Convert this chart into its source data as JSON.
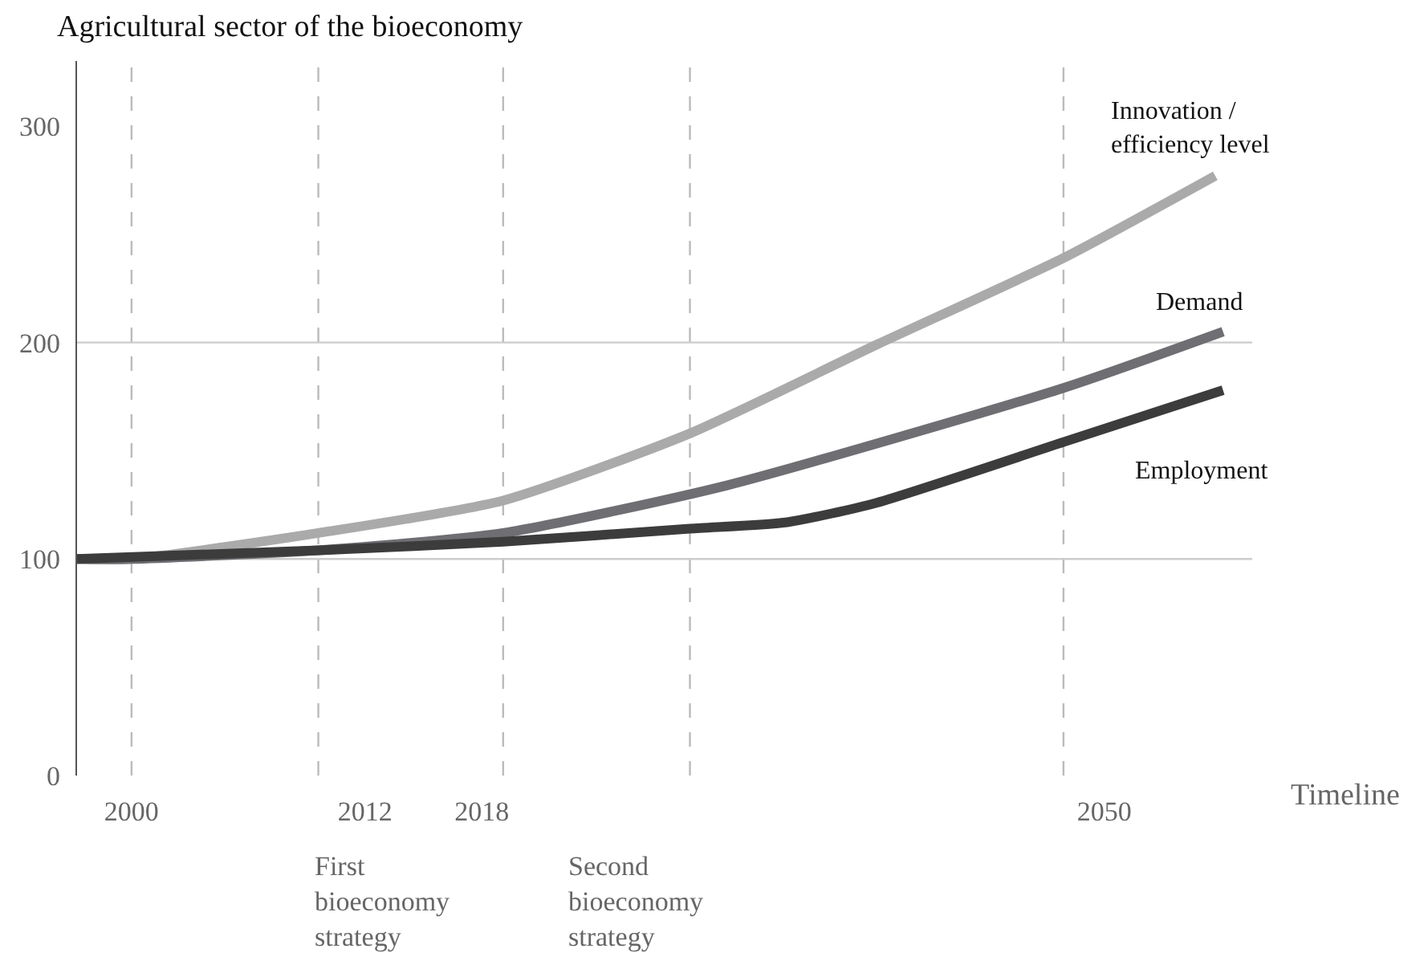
{
  "chart_data": {
    "type": "line",
    "title": "Agricultural sector of the bioeconomy",
    "xlabel": "Timeline",
    "xlim": [
      1997.2,
      2057.6
    ],
    "xticks": [
      2000,
      2012,
      2018,
      2050
    ],
    "ylim": [
      0,
      330
    ],
    "yticks": [
      0,
      100,
      200,
      300
    ],
    "grid": false,
    "legend": false,
    "marker": "none",
    "line_style": "solid",
    "series": [
      {
        "name": "Innovation /\nefficiency level",
        "color": "#aaaaaa",
        "x": [
          1997.2,
          2000,
          2009.6,
          2019.1,
          2028.7,
          2038.3,
          2047.9,
          2055.7
        ],
        "values": [
          100,
          100,
          112,
          127,
          158,
          199,
          239,
          277
        ]
      },
      {
        "name": "Demand",
        "color": "#6e6e73",
        "x": [
          1997.2,
          2000,
          2009.6,
          2019.1,
          2030.6,
          2047.9,
          2056.1
        ],
        "values": [
          100,
          100,
          104,
          112,
          134,
          179,
          205
        ]
      },
      {
        "name": "Employment",
        "color": "#3c3c3c",
        "x": [
          1997.2,
          2009.6,
          2019.1,
          2028.7,
          2033.7,
          2038.3,
          2047.9,
          2056.1
        ],
        "values": [
          100,
          104,
          108,
          114,
          117,
          126,
          154,
          178
        ]
      }
    ],
    "ref_lines": [
      {
        "axis": "x",
        "value": 2000,
        "color": "#bbbbbb",
        "line_style": "dashed"
      },
      {
        "axis": "x",
        "value": 2009.6,
        "color": "#bbbbbb",
        "line_style": "dashed"
      },
      {
        "axis": "x",
        "value": 2019.1,
        "color": "#bbbbbb",
        "line_style": "dashed"
      },
      {
        "axis": "x",
        "value": 2028.7,
        "color": "#bbbbbb",
        "line_style": "dashed"
      },
      {
        "axis": "x",
        "value": 2047.9,
        "color": "#bbbbbb",
        "line_style": "dashed"
      },
      {
        "axis": "y",
        "value": 100,
        "color": "#cccccc",
        "line_style": "solid"
      },
      {
        "axis": "y",
        "value": 200,
        "color": "#cccccc",
        "line_style": "solid"
      }
    ],
    "annotations": [
      "First\nbioeconomy\nstrategy",
      "Second\nbioeconomy\nstrategy"
    ]
  }
}
